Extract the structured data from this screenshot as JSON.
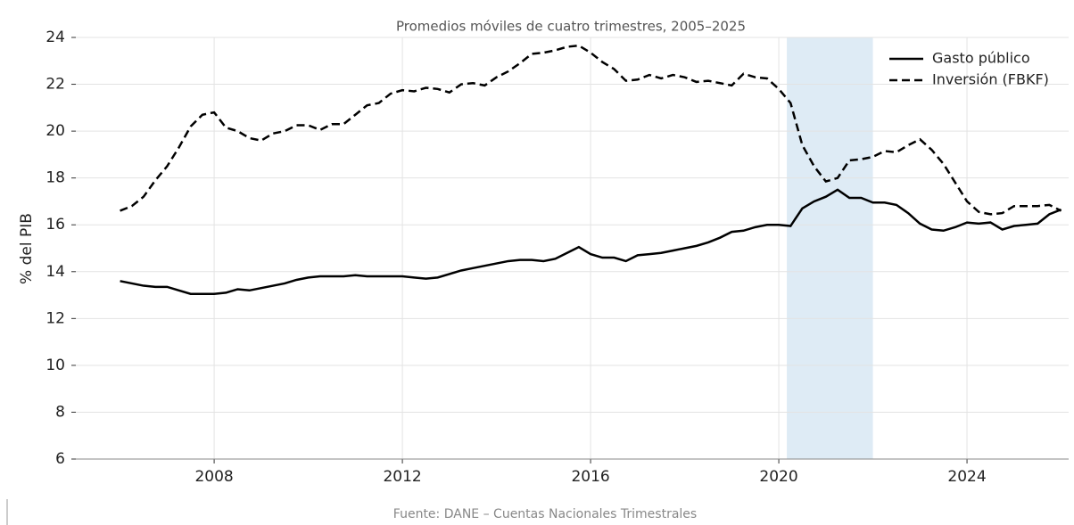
{
  "chart_data": {
    "type": "line",
    "title": "Promedios móviles de cuatro trimestres, 2005–2025",
    "ylabel": "% del PIB",
    "source": "Fuente: DANE – Cuentas Nacionales Trimestrales",
    "x": [
      2006,
      2006.25,
      2006.5,
      2006.75,
      2007,
      2007.25,
      2007.5,
      2007.75,
      2008,
      2008.25,
      2008.5,
      2008.75,
      2009,
      2009.25,
      2009.5,
      2009.75,
      2010,
      2010.25,
      2010.5,
      2010.75,
      2011,
      2011.25,
      2011.5,
      2011.75,
      2012,
      2012.25,
      2012.5,
      2012.75,
      2013,
      2013.25,
      2013.5,
      2013.75,
      2014,
      2014.25,
      2014.5,
      2014.75,
      2015,
      2015.25,
      2015.5,
      2015.75,
      2016,
      2016.25,
      2016.5,
      2016.75,
      2017,
      2017.25,
      2017.5,
      2017.75,
      2018,
      2018.25,
      2018.5,
      2018.75,
      2019,
      2019.25,
      2019.5,
      2019.75,
      2020,
      2020.25,
      2020.5,
      2020.75,
      2021,
      2021.25,
      2021.5,
      2021.75,
      2022,
      2022.25,
      2022.5,
      2022.75,
      2023,
      2023.25,
      2023.5,
      2023.75,
      2024,
      2024.25,
      2024.5,
      2024.75,
      2025,
      2025.25,
      2025.5,
      2025.75,
      2026
    ],
    "series": [
      {
        "name": "Gasto público",
        "color": "#000000",
        "dash": false,
        "values": [
          13.6,
          13.5,
          13.4,
          13.35,
          13.35,
          13.2,
          13.05,
          13.05,
          13.05,
          13.1,
          13.25,
          13.2,
          13.3,
          13.4,
          13.5,
          13.65,
          13.75,
          13.8,
          13.8,
          13.8,
          13.85,
          13.8,
          13.8,
          13.8,
          13.8,
          13.75,
          13.7,
          13.75,
          13.9,
          14.05,
          14.15,
          14.25,
          14.35,
          14.45,
          14.5,
          14.5,
          14.45,
          14.55,
          14.8,
          15.05,
          14.75,
          14.6,
          14.6,
          14.45,
          14.7,
          14.75,
          14.8,
          14.9,
          15.0,
          15.1,
          15.25,
          15.45,
          15.7,
          15.75,
          15.9,
          16.0,
          16.0,
          15.95,
          16.7,
          17.0,
          17.2,
          17.5,
          17.15,
          17.15,
          16.95,
          16.95,
          16.85,
          16.5,
          16.05,
          15.8,
          15.75,
          15.9,
          16.1,
          16.05,
          16.1,
          15.8,
          15.95,
          16.0,
          16.05,
          16.45,
          16.65
        ]
      },
      {
        "name": "Inversión (FBKF)",
        "color": "#000000",
        "dash": true,
        "values": [
          16.6,
          16.8,
          17.2,
          17.9,
          18.5,
          19.3,
          20.2,
          20.7,
          20.8,
          20.15,
          20.0,
          19.7,
          19.6,
          19.9,
          20.0,
          20.25,
          20.25,
          20.05,
          20.3,
          20.3,
          20.7,
          21.1,
          21.2,
          21.6,
          21.75,
          21.7,
          21.85,
          21.8,
          21.65,
          22.0,
          22.05,
          21.95,
          22.3,
          22.55,
          22.9,
          23.3,
          23.35,
          23.45,
          23.6,
          23.65,
          23.35,
          22.95,
          22.65,
          22.15,
          22.2,
          22.4,
          22.25,
          22.4,
          22.3,
          22.1,
          22.15,
          22.05,
          21.95,
          22.45,
          22.3,
          22.25,
          21.8,
          21.2,
          19.4,
          18.5,
          17.85,
          18.0,
          18.75,
          18.8,
          18.9,
          19.15,
          19.1,
          19.4,
          19.65,
          19.2,
          18.6,
          17.8,
          17.0,
          16.55,
          16.45,
          16.5,
          16.8,
          16.8,
          16.8,
          16.85,
          16.6
        ]
      }
    ],
    "highlight": {
      "range": [
        2020.17,
        2022.0
      ],
      "color": "#deebf5"
    },
    "xlim": [
      2005.06,
      2026.16
    ],
    "xticks": [
      2008,
      2012,
      2016,
      2020,
      2024
    ],
    "ylim": [
      6,
      24
    ],
    "yticks": [
      6,
      8,
      10,
      12,
      14,
      16,
      18,
      20,
      22,
      24
    ],
    "grid": true,
    "legend": "upper right"
  }
}
